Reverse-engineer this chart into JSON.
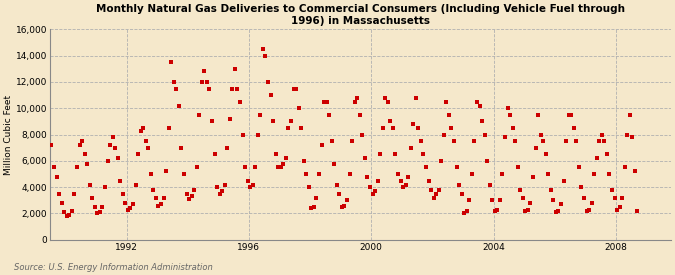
{
  "title": "Monthly Natural Gas Deliveries to Commercial Consumers (Including Vehicle Fuel through\n1996) in Massachusetts",
  "ylabel": "Million Cubic Feet",
  "source": "Source: U.S. Energy Information Administration",
  "background_color": "#f5e8cb",
  "dot_color": "#cc0000",
  "ylim": [
    0,
    16000
  ],
  "yticks": [
    0,
    2000,
    4000,
    6000,
    8000,
    10000,
    12000,
    14000,
    16000
  ],
  "xticks": [
    1992,
    1996,
    2000,
    2004,
    2008
  ],
  "xlim_start": 1989.5,
  "xlim_end": 2009.8,
  "values": [
    7200,
    5500,
    4800,
    3500,
    2800,
    2100,
    1800,
    1900,
    2200,
    3500,
    5500,
    7200,
    7500,
    6500,
    5800,
    4200,
    3200,
    2500,
    2000,
    2100,
    2500,
    4000,
    6000,
    7200,
    7800,
    7000,
    6200,
    4500,
    3500,
    2800,
    2300,
    2400,
    2700,
    4200,
    6500,
    8300,
    8500,
    7500,
    7000,
    5000,
    3800,
    3200,
    2600,
    2700,
    3200,
    5200,
    8500,
    13500,
    12000,
    11500,
    10200,
    7000,
    5000,
    3500,
    3100,
    3300,
    3800,
    5500,
    9500,
    12000,
    12800,
    12000,
    11500,
    9000,
    6500,
    4000,
    3500,
    3700,
    4200,
    7000,
    9200,
    11500,
    13000,
    11500,
    10500,
    8000,
    5500,
    4500,
    4000,
    4200,
    5500,
    8000,
    9500,
    14500,
    14000,
    12000,
    11000,
    9000,
    6500,
    5500,
    5500,
    5800,
    6200,
    8500,
    9000,
    11500,
    11500,
    10000,
    8500,
    6000,
    5000,
    4000,
    2400,
    2500,
    3200,
    5000,
    7200,
    10500,
    10500,
    9500,
    7500,
    5800,
    4200,
    3500,
    2500,
    2600,
    3000,
    5000,
    7500,
    10500,
    10800,
    9500,
    8000,
    6200,
    4800,
    4000,
    3500,
    3700,
    4500,
    6500,
    8500,
    10800,
    10500,
    9000,
    8500,
    6500,
    5000,
    4500,
    4000,
    4200,
    4800,
    7000,
    8800,
    10800,
    8500,
    7500,
    6500,
    5500,
    4500,
    3800,
    3200,
    3500,
    3800,
    6000,
    8000,
    10500,
    9500,
    8500,
    7500,
    5500,
    4200,
    3500,
    2000,
    2200,
    3000,
    5000,
    7500,
    10500,
    10200,
    9000,
    8000,
    6000,
    4200,
    3000,
    2200,
    2300,
    3000,
    5000,
    7800,
    10000,
    9500,
    8500,
    7500,
    5500,
    3800,
    3200,
    2200,
    2300,
    2800,
    4800,
    7000,
    9500,
    8000,
    7500,
    6500,
    5000,
    3800,
    3000,
    2100,
    2200,
    2700,
    4500,
    7500,
    9500,
    9500,
    8500,
    7500,
    5500,
    4000,
    3200,
    2200,
    2300,
    2800,
    5000,
    6200,
    7500,
    8000,
    7500,
    6500,
    5000,
    3800,
    3200,
    2300,
    2500,
    3200,
    5500,
    8000,
    9500,
    7800,
    5200,
    2200
  ],
  "start_year": 1989,
  "start_month": 7
}
